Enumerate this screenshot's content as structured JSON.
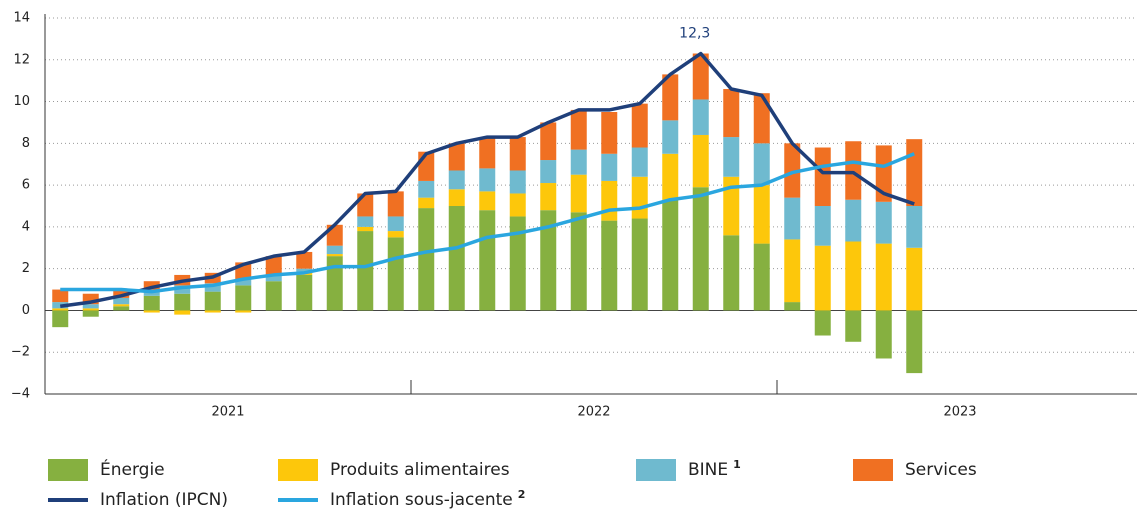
{
  "chart_data": {
    "type": "stacked_bar_line",
    "categories": [
      null,
      null,
      null,
      null,
      null,
      null,
      null,
      null,
      null,
      null,
      null,
      null,
      null,
      null,
      null,
      null,
      null,
      null,
      null,
      null,
      null,
      null,
      null,
      null,
      null,
      null,
      null,
      null,
      null
    ],
    "year_labels": [
      "2021",
      "2022",
      "2023"
    ],
    "series": [
      {
        "name": "Énergie",
        "color": "#86b040",
        "kind": "bar",
        "values": [
          -0.8,
          -0.3,
          0.2,
          0.7,
          0.8,
          0.9,
          1.2,
          1.4,
          1.7,
          2.6,
          3.8,
          3.5,
          4.9,
          5.0,
          4.8,
          4.5,
          4.8,
          4.7,
          4.3,
          4.4,
          5.3,
          5.9,
          3.6,
          3.2,
          0.4,
          -1.2,
          -1.5,
          -2.3,
          -3.0
        ]
      },
      {
        "name": "Produits alimentaires",
        "color": "#fdc70b",
        "kind": "bar",
        "values": [
          0.1,
          0.1,
          0.1,
          -0.1,
          -0.2,
          -0.1,
          -0.1,
          0.0,
          0.1,
          0.1,
          0.2,
          0.3,
          0.5,
          0.8,
          0.9,
          1.1,
          1.3,
          1.8,
          1.9,
          2.0,
          2.2,
          2.5,
          2.8,
          2.8,
          3.0,
          3.1,
          3.3,
          3.2,
          3.0
        ]
      },
      {
        "name": "BINE",
        "footnote": "1",
        "color": "#6fbacf",
        "kind": "bar",
        "values": [
          0.3,
          0.2,
          0.3,
          0.3,
          0.4,
          0.4,
          0.3,
          0.3,
          0.2,
          0.4,
          0.5,
          0.7,
          0.8,
          0.9,
          1.1,
          1.1,
          1.1,
          1.2,
          1.3,
          1.4,
          1.6,
          1.7,
          1.9,
          2.0,
          2.0,
          1.9,
          2.0,
          2.0,
          2.0
        ]
      },
      {
        "name": "Services",
        "color": "#f07022",
        "kind": "bar",
        "values": [
          0.6,
          0.5,
          0.4,
          0.4,
          0.5,
          0.5,
          0.8,
          0.9,
          0.8,
          1.0,
          1.1,
          1.2,
          1.4,
          1.3,
          1.5,
          1.6,
          1.8,
          1.9,
          2.0,
          2.1,
          2.2,
          2.2,
          2.3,
          2.4,
          2.6,
          2.8,
          2.8,
          2.7,
          3.2
        ]
      },
      {
        "name": "Inflation (IPCN)",
        "color": "#1f3f7a",
        "kind": "line",
        "values": [
          0.2,
          0.4,
          0.7,
          1.1,
          1.4,
          1.6,
          2.2,
          2.6,
          2.8,
          4.1,
          5.6,
          5.7,
          7.5,
          8.0,
          8.3,
          8.3,
          9.0,
          9.6,
          9.6,
          9.9,
          11.3,
          12.3,
          10.6,
          10.3,
          8.0,
          6.6,
          6.6,
          5.6,
          5.1
        ],
        "value_labels": [
          null,
          null,
          null,
          null,
          null,
          null,
          null,
          null,
          null,
          null,
          null,
          null,
          null,
          null,
          null,
          null,
          null,
          null,
          null,
          null,
          null,
          "12,3",
          null,
          null,
          null,
          null,
          null,
          null,
          null
        ]
      },
      {
        "name": "Inflation sous-jacente",
        "footnote": "2",
        "color": "#2aa6df",
        "kind": "line",
        "values": [
          1.0,
          1.0,
          1.0,
          0.9,
          1.1,
          1.2,
          1.5,
          1.7,
          1.8,
          2.1,
          2.1,
          2.5,
          2.8,
          3.0,
          3.5,
          3.7,
          4.0,
          4.4,
          4.8,
          4.9,
          5.3,
          5.5,
          5.9,
          6.0,
          6.6,
          6.9,
          7.1,
          6.9,
          7.5
        ]
      }
    ],
    "ylim": [
      -4,
      14
    ],
    "yticks": [
      {
        "value": -4,
        "label": "−4"
      },
      {
        "value": -2,
        "label": "−2"
      },
      0,
      2,
      4,
      6,
      8,
      10,
      12,
      14
    ],
    "grid": true
  }
}
